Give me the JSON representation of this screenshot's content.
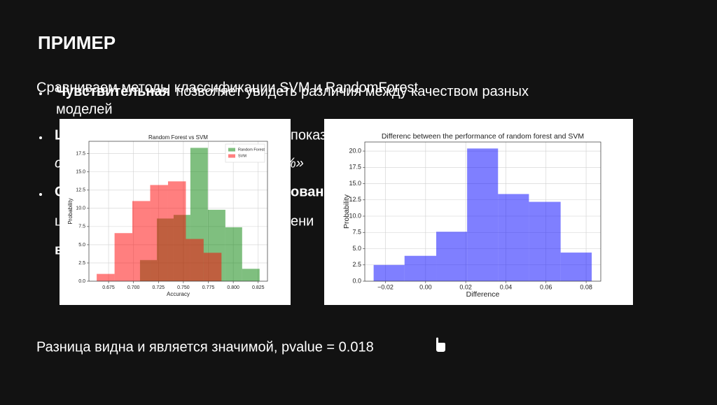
{
  "slide": {
    "title": "ПРИМЕР",
    "intro": "Сравниваем методы классификации SVM и RandomForest",
    "bullet": {
      "bold": "Чувствительная",
      "line1": "позволяет увидеть различия между качеством разных",
      "line2": "моделей"
    },
    "fragments": [
      {
        "left": "Ц",
        "right": "показ"
      },
      {
        "left": "с",
        "right": "%»"
      },
      {
        "left": "С",
        "right": "ован"
      },
      {
        "left": "ц",
        "right": "ени"
      },
      {
        "left": "в"
      }
    ],
    "conclusion": "Разница видна и является значимой, pvalue = 0.018"
  },
  "chart_data": [
    {
      "type": "histogram",
      "title": "Random Forest vs SVM",
      "xlabel": "Accuracy",
      "ylabel": "Probability",
      "series": [
        {
          "name": "Random Forest",
          "color": "#008000",
          "alpha": 0.5,
          "bins": [
            0.7065,
            0.7234,
            0.7402,
            0.757,
            0.7745,
            0.7921,
            0.8089,
            0.8264
          ],
          "values": [
            2.9,
            8.6,
            9.1,
            18.3,
            9.8,
            7.4,
            1.7
          ]
        },
        {
          "name": "SVM",
          "color": "#ff0000",
          "alpha": 0.5,
          "bins": [
            0.6631,
            0.681,
            0.6988,
            0.7167,
            0.7346,
            0.7525,
            0.7703,
            0.7882
          ],
          "values": [
            1.0,
            6.6,
            11.0,
            13.2,
            13.7,
            5.8,
            3.9
          ]
        }
      ],
      "xlim": [
        0.6553,
        0.8343
      ],
      "ylim": [
        0,
        19.2
      ],
      "xticks": [
        0.675,
        {
          "value": 0.7,
          "label": "0.700"
        },
        0.725,
        {
          "value": 0.75,
          "label": "0.750"
        },
        0.775,
        {
          "value": 0.8,
          "label": "0.800"
        },
        0.825
      ],
      "yticks": [
        {
          "value": 0,
          "label": "0.0"
        },
        2.5,
        {
          "value": 5,
          "label": "5.0"
        },
        7.5,
        {
          "value": 10,
          "label": "10.0"
        },
        12.5,
        {
          "value": 15,
          "label": "15.0"
        },
        17.5
      ],
      "grid": true,
      "legend": "upper right"
    },
    {
      "type": "histogram",
      "title": "Differenc between the performance of random forest and SVM",
      "xlabel": "Difference",
      "ylabel": "Probability",
      "series": [
        {
          "color": "#0000ff",
          "alpha": 0.5,
          "bins": [
            -0.0259,
            -0.0105,
            0.0053,
            0.0207,
            0.0361,
            0.0515,
            0.0673,
            0.0828
          ],
          "values": [
            2.5,
            3.9,
            7.6,
            20.4,
            13.4,
            12.2,
            4.4
          ]
        }
      ],
      "xlim": [
        -0.0303,
        0.0873
      ],
      "ylim": [
        0,
        21.4
      ],
      "xticks": [
        {
          "value": -0.02,
          "label": "−0.02"
        },
        {
          "value": 0,
          "label": "0.00"
        },
        0.02,
        0.04,
        0.06,
        0.08
      ],
      "yticks": [
        {
          "value": 0,
          "label": "0.0"
        },
        2.5,
        {
          "value": 5,
          "label": "5.0"
        },
        7.5,
        {
          "value": 10,
          "label": "10.0"
        },
        12.5,
        {
          "value": 15,
          "label": "15.0"
        },
        17.5,
        {
          "value": 20,
          "label": "20.0"
        }
      ],
      "grid": true
    }
  ]
}
